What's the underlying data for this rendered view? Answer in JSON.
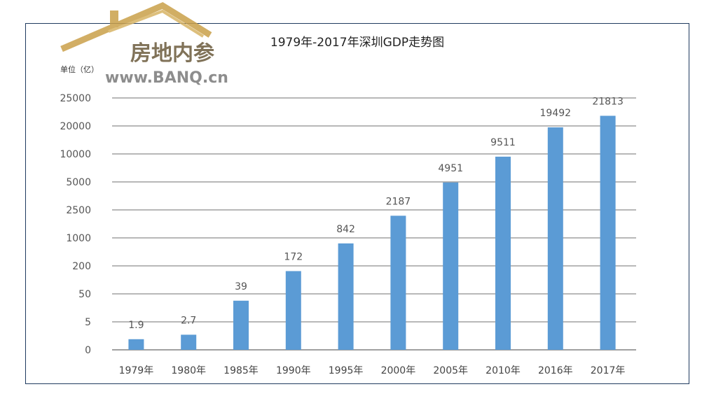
{
  "watermark": {
    "cn": "房地内参",
    "url": "www.BANQ.cn"
  },
  "chart_data": {
    "type": "bar",
    "title": "1979年-2017年深圳GDP走势图",
    "unit_label": "单位（亿）",
    "categories": [
      "1979年",
      "1980年",
      "1985年",
      "1990年",
      "1995年",
      "2000年",
      "2005年",
      "2010年",
      "2016年",
      "2017年"
    ],
    "values": [
      1.9,
      2.7,
      39,
      172,
      842,
      2187,
      4951,
      9511,
      19492,
      21813
    ],
    "data_labels": [
      "1.9",
      "2.7",
      "39",
      "172",
      "842",
      "2187",
      "4951",
      "9511",
      "19492",
      "21813"
    ],
    "y_ticks": [
      0,
      5,
      50,
      200,
      1000,
      2500,
      5000,
      10000,
      20000,
      25000
    ],
    "y_tick_labels": [
      "0",
      "5",
      "50",
      "200",
      "1000",
      "2500",
      "5000",
      "10000",
      "20000",
      "25000"
    ],
    "scale": "non-linear (piecewise between tick labels)",
    "grid": true,
    "legend": "none",
    "colors": {
      "bar": "#5b9bd5",
      "grid": "#404040",
      "frame": "#1f3a5f"
    }
  }
}
